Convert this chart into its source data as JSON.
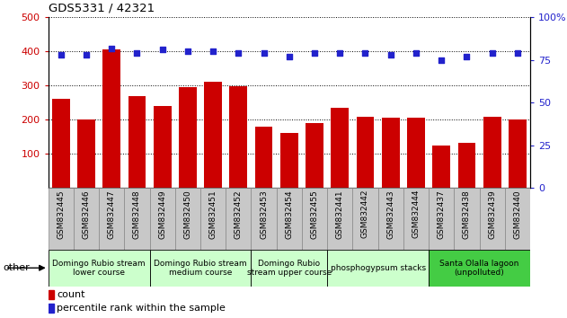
{
  "title": "GDS5331 / 42321",
  "samples": [
    "GSM832445",
    "GSM832446",
    "GSM832447",
    "GSM832448",
    "GSM832449",
    "GSM832450",
    "GSM832451",
    "GSM832452",
    "GSM832453",
    "GSM832454",
    "GSM832455",
    "GSM832441",
    "GSM832442",
    "GSM832443",
    "GSM832444",
    "GSM832437",
    "GSM832438",
    "GSM832439",
    "GSM832440"
  ],
  "counts": [
    260,
    200,
    405,
    270,
    240,
    295,
    310,
    298,
    178,
    160,
    190,
    235,
    208,
    205,
    205,
    125,
    132,
    208,
    200
  ],
  "percentiles": [
    78,
    78,
    82,
    79,
    81,
    80,
    80,
    79,
    79,
    77,
    79,
    79,
    79,
    78,
    79,
    75,
    77,
    79,
    79
  ],
  "bar_color": "#cc0000",
  "dot_color": "#2222cc",
  "ylim_left": [
    0,
    500
  ],
  "ylim_right": [
    0,
    100
  ],
  "yticks_left": [
    100,
    200,
    300,
    400,
    500
  ],
  "yticks_right": [
    0,
    25,
    50,
    75,
    100
  ],
  "groups": [
    {
      "label": "Domingo Rubio stream\nlower course",
      "start": 0,
      "end": 4,
      "color": "#ccffcc"
    },
    {
      "label": "Domingo Rubio stream\nmedium course",
      "start": 4,
      "end": 8,
      "color": "#ccffcc"
    },
    {
      "label": "Domingo Rubio\nstream upper course",
      "start": 8,
      "end": 11,
      "color": "#ccffcc"
    },
    {
      "label": "phosphogypsum stacks",
      "start": 11,
      "end": 15,
      "color": "#ccffcc"
    },
    {
      "label": "Santa Olalla lagoon\n(unpolluted)",
      "start": 15,
      "end": 19,
      "color": "#44cc44"
    }
  ],
  "xtick_bg_color": "#c8c8c8",
  "xtick_border_color": "#888888",
  "legend_count_label": "count",
  "legend_pct_label": "percentile rank within the sample",
  "other_label": "other"
}
